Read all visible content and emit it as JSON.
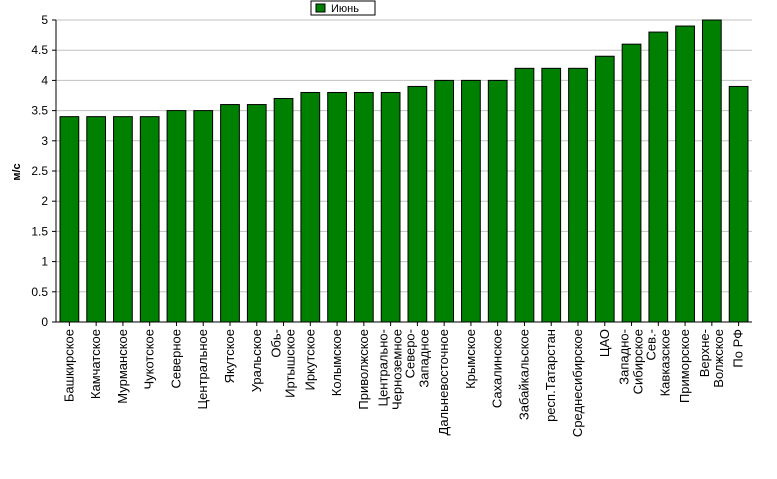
{
  "chart_data": {
    "type": "bar",
    "ylabel": "м/с",
    "xlabel": "",
    "ylim": [
      0,
      5
    ],
    "yticks": [
      "0",
      "0.5",
      "1",
      "1.5",
      "2",
      "2.5",
      "3",
      "3.5",
      "4",
      "4.5",
      "5"
    ],
    "grid": "horizontal",
    "legend_position": "top-center",
    "series": [
      {
        "name": "Июнь",
        "color": "#008000",
        "values": [
          3.4,
          3.4,
          3.4,
          3.4,
          3.5,
          3.5,
          3.6,
          3.6,
          3.7,
          3.8,
          3.8,
          3.8,
          3.8,
          3.9,
          4.0,
          4.0,
          4.0,
          4.2,
          4.2,
          4.2,
          4.4,
          4.6,
          4.8,
          4.9,
          5.0,
          3.9
        ]
      }
    ],
    "categories": [
      [
        "Башкирское"
      ],
      [
        "Камчатское"
      ],
      [
        "Мурманское"
      ],
      [
        "Чукотское"
      ],
      [
        "Северное"
      ],
      [
        "Центральное"
      ],
      [
        "Якутское"
      ],
      [
        "Уральское"
      ],
      [
        "Обь-",
        "Иртышское"
      ],
      [
        "Иркутское"
      ],
      [
        "Колымское"
      ],
      [
        "Приволжское"
      ],
      [
        "Центрально-",
        "Черноземное"
      ],
      [
        "Северо-",
        "Западное"
      ],
      [
        "Дальневосточное"
      ],
      [
        "Крымское"
      ],
      [
        "Сахалинское"
      ],
      [
        "Забайкальское"
      ],
      [
        "респ.Татарстан"
      ],
      [
        "Среднесибирское"
      ],
      [
        "ЦАО"
      ],
      [
        "Западно-",
        "Сибирское"
      ],
      [
        "Сев.-",
        "Кавказское"
      ],
      [
        "Приморское"
      ],
      [
        "Верхне-",
        "Волжское"
      ],
      [
        "По РФ"
      ]
    ]
  }
}
